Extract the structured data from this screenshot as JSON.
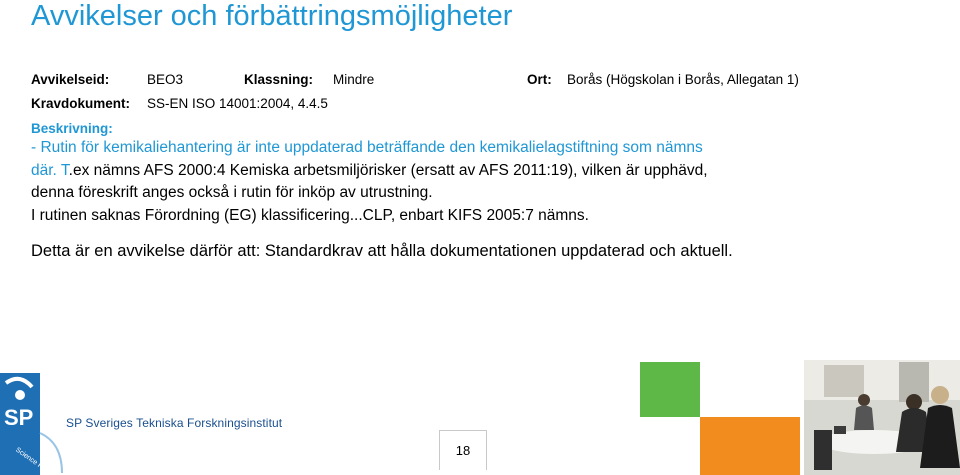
{
  "title": "Avvikelser och förbättringsmöjligheter",
  "meta": {
    "avvikelseid_label": "Avvikelseid:",
    "avvikelseid_value": "BEO3",
    "klassning_label": "Klassning:",
    "klassning_value": "Mindre",
    "ort_label": "Ort:",
    "ort_value": "Borås (Högskolan i Borås, Allegatan 1)",
    "kravdokument_label": "Kravdokument:",
    "kravdokument_value": "SS-EN ISO 14001:2004, 4.4.5"
  },
  "beskrivning_label": "Beskrivning:",
  "description_lines": [
    "- Rutin för kemikaliehantering är inte uppdaterad beträffande den kemikalielagstiftning som nämns",
    "där. T.ex nämns AFS 2000:4 Kemiska arbetsmiljörisker (ersatt av AFS 2011:19), vilken är upphävd,",
    "denna föreskrift anges också i rutin för inköp av utrustning.",
    "I rutinen saknas Förordning (EG) klassificering...CLP, enbart KIFS 2005:7 nämns."
  ],
  "conclusion": "Detta är en avvikelse därför att: Standardkrav att hålla dokumentationen uppdaterad och aktuell.",
  "footer": {
    "logo_text": "SP",
    "logo_tagline": "your Science Partner",
    "org_name": "SP Sveriges Tekniska Forskningsinstitut",
    "page_number": "18"
  },
  "colors": {
    "accent_blue": "#1f97d4",
    "sp_blue": "#1a4f8f",
    "green": "#5db848",
    "orange": "#f28c1e"
  }
}
